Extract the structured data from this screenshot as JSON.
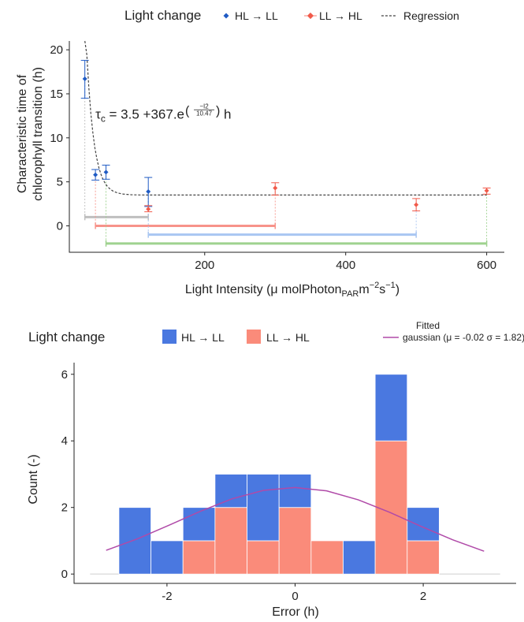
{
  "colors": {
    "hl_ll": "#1f5bc4",
    "ll_hl": "#f15a4a",
    "bar_hl_ll": "#4a78e0",
    "bar_ll_hl": "#fa8b7a",
    "gaussian": "#b04aa8",
    "regression": "#444444",
    "range_grey": "#bfbfbf",
    "range_red": "#f7938a",
    "range_blue": "#a9c6f2",
    "range_green": "#9fd28f"
  },
  "chart_data": [
    {
      "type": "scatter",
      "legend": {
        "title": "Light change",
        "entries": [
          "HL → LL",
          "LL → HL",
          "Regression"
        ],
        "placement": "top"
      },
      "ylabel_lines": [
        "Characteristic time of",
        "chlorophyll transition (h)"
      ],
      "xlabel": "Light Intensity (μ molPhoton",
      "xlabel_sub": "PAR",
      "xlabel_unit": "m",
      "xlabel_sup1": "−2",
      "xlabel_s": "s",
      "xlabel_sup2": "−1",
      "xlabel_close": ")",
      "xlim": [
        8,
        625
      ],
      "ylim": [
        -3.0,
        21.0
      ],
      "xticks": [
        200,
        400,
        600
      ],
      "yticks": [
        0,
        5,
        10,
        15,
        20
      ],
      "annotation": {
        "tau": "τ",
        "tau_sub": "c",
        "text": " = 3.5 +367.e",
        "exp_num": "−I2",
        "exp_den": "10.47",
        "unit": "h",
        "x": 45,
        "y": 12.2
      },
      "series": [
        {
          "name": "HL → LL",
          "points": [
            {
              "x": 30,
              "y": 16.7,
              "ymin": 14.5,
              "ymax": 18.8
            },
            {
              "x": 45,
              "y": 5.8,
              "ymin": 5.2,
              "ymax": 6.4
            },
            {
              "x": 60,
              "y": 6.1,
              "ymin": 5.3,
              "ymax": 6.9
            },
            {
              "x": 120,
              "y": 3.9,
              "ymin": 2.2,
              "ymax": 5.5
            }
          ]
        },
        {
          "name": "LL → HL",
          "points": [
            {
              "x": 120,
              "y": 1.9,
              "ymin": 1.6,
              "ymax": 2.3
            },
            {
              "x": 300,
              "y": 4.3,
              "ymin": 3.5,
              "ymax": 4.9
            },
            {
              "x": 500,
              "y": 2.4,
              "ymin": 1.7,
              "ymax": 3.1
            },
            {
              "x": 600,
              "y": 4.0,
              "ymin": 3.6,
              "ymax": 4.3
            }
          ]
        }
      ],
      "regression": {
        "a": 3.5,
        "b": 367,
        "c": 10.47,
        "x_from": 30,
        "x_to": 600
      },
      "ranges": [
        {
          "x1": 30,
          "x2": 120,
          "y": 1.0,
          "color_key": "range_grey"
        },
        {
          "x1": 45,
          "x2": 300,
          "y": 0.0,
          "color_key": "range_red"
        },
        {
          "x1": 120,
          "x2": 500,
          "y": -1.0,
          "color_key": "range_blue"
        },
        {
          "x1": 60,
          "x2": 600,
          "y": -2.0,
          "color_key": "range_green"
        }
      ]
    },
    {
      "type": "bar",
      "stacked": true,
      "legend": {
        "title": "Light change",
        "entries": [
          "HL → LL",
          "LL → HL"
        ],
        "fitted_line1": "Fitted",
        "fitted_line2": "gaussian (μ =  -0.02 σ = 1.82)",
        "placement": "top"
      },
      "xlabel": "Error (h)",
      "ylabel": "Count (-)",
      "xlim": [
        -3.45,
        3.45
      ],
      "ylim": [
        -0.28,
        6.35
      ],
      "xticks": [
        -2,
        0,
        2
      ],
      "yticks": [
        0,
        2,
        4,
        6
      ],
      "bin_width": 0.5,
      "bins": [
        {
          "x0": -2.75,
          "hl_ll": 2,
          "ll_hl": 0
        },
        {
          "x0": -2.25,
          "hl_ll": 1,
          "ll_hl": 0
        },
        {
          "x0": -1.75,
          "hl_ll": 1,
          "ll_hl": 1
        },
        {
          "x0": -1.25,
          "hl_ll": 1,
          "ll_hl": 2
        },
        {
          "x0": -0.75,
          "hl_ll": 2,
          "ll_hl": 1
        },
        {
          "x0": -0.25,
          "hl_ll": 1,
          "ll_hl": 2
        },
        {
          "x0": 0.25,
          "hl_ll": 0,
          "ll_hl": 1
        },
        {
          "x0": 0.75,
          "hl_ll": 1,
          "ll_hl": 0
        },
        {
          "x0": 1.25,
          "hl_ll": 2,
          "ll_hl": 4
        },
        {
          "x0": 1.75,
          "hl_ll": 1,
          "ll_hl": 1
        }
      ],
      "gaussian": {
        "mu": -0.02,
        "sigma": 1.82,
        "peak": 2.6,
        "x_from": -2.95,
        "x_to": 2.95
      },
      "baseline": {
        "x_from": -3.2,
        "x_to": 3.2
      }
    }
  ]
}
